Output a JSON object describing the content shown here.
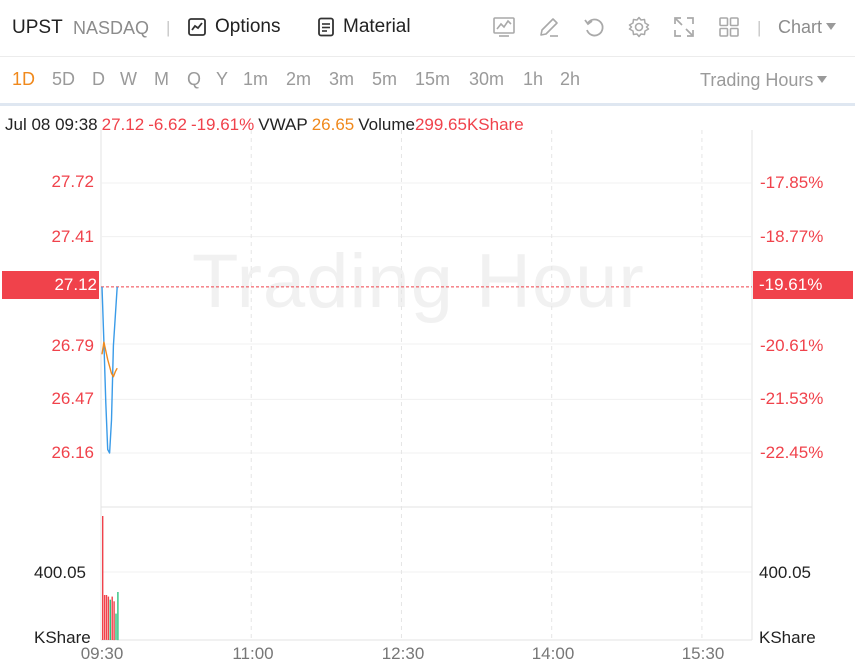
{
  "header": {
    "symbol": "UPST",
    "exchange": "NASDAQ",
    "separator": "|",
    "options_label": "Options",
    "material_label": "Material",
    "chart_type_label": "Chart",
    "icons": [
      "indicator-icon",
      "draw-icon",
      "refresh-icon",
      "settings-icon",
      "fullscreen-icon",
      "layout-icon",
      "chevron-down-icon"
    ]
  },
  "periods": {
    "items": [
      "1D",
      "5D",
      "D",
      "W",
      "M",
      "Q",
      "Y",
      "1m",
      "2m",
      "3m",
      "5m",
      "15m",
      "30m",
      "1h",
      "2h"
    ],
    "active": "1D",
    "session_label": "Trading Hours"
  },
  "quote": {
    "datetime": "Jul 08 09:38",
    "price": "27.12",
    "change": "-6.62",
    "change_pct": "-19.61%",
    "vwap_label": "VWAP",
    "vwap": "26.65",
    "volume_label": "Volume",
    "volume": "299.65KShare"
  },
  "watermark": "Trading Hour",
  "colors": {
    "up": "#f0424b",
    "down": "#2ec27e",
    "price_line": "#3a9be8",
    "vwap_line": "#f0891c",
    "accent": "#f0891c"
  },
  "chart_data": {
    "type": "line",
    "price_axis_left": [
      "27.72",
      "27.41",
      "27.12",
      "26.79",
      "26.47",
      "26.16"
    ],
    "price_axis_right": [
      "-17.85%",
      "-18.77%",
      "-19.61%",
      "-20.61%",
      "-21.53%",
      "-22.45%"
    ],
    "current_price_tag": "27.12",
    "current_pct_tag": "-19.61%",
    "volume_axis_left": [
      "400.05",
      "KShare"
    ],
    "volume_axis_right": [
      "400.05",
      "KShare"
    ],
    "x_ticks": [
      "09:30",
      "11:00",
      "12:30",
      "14:00",
      "15:30"
    ],
    "x_range": [
      "09:30",
      "16:00"
    ],
    "price_range": [
      26.0,
      27.9
    ],
    "series": [
      {
        "name": "Price",
        "x": [
          "09:30",
          "09:31",
          "09:32",
          "09:33",
          "09:34",
          "09:35",
          "09:36",
          "09:37",
          "09:38"
        ],
        "values": [
          27.12,
          26.8,
          26.45,
          26.18,
          26.16,
          26.35,
          26.78,
          26.95,
          27.12
        ]
      },
      {
        "name": "VWAP",
        "x": [
          "09:30",
          "09:31",
          "09:32",
          "09:33",
          "09:34",
          "09:35",
          "09:36",
          "09:37",
          "09:38"
        ],
        "values": [
          26.73,
          26.8,
          26.75,
          26.7,
          26.66,
          26.62,
          26.6,
          26.63,
          26.65
        ]
      }
    ],
    "volume_bars": [
      {
        "x": "09:30",
        "value": 800,
        "dir": "up"
      },
      {
        "x": "09:31",
        "value": 290,
        "dir": "up"
      },
      {
        "x": "09:32",
        "value": 290,
        "dir": "up"
      },
      {
        "x": "09:33",
        "value": 280,
        "dir": "up"
      },
      {
        "x": "09:34",
        "value": 260,
        "dir": "down"
      },
      {
        "x": "09:35",
        "value": 280,
        "dir": "up"
      },
      {
        "x": "09:36",
        "value": 250,
        "dir": "up"
      },
      {
        "x": "09:37",
        "value": 170,
        "dir": "down"
      },
      {
        "x": "09:38",
        "value": 310,
        "dir": "down"
      }
    ],
    "volume_range": [
      0,
      800
    ],
    "grid": true
  }
}
